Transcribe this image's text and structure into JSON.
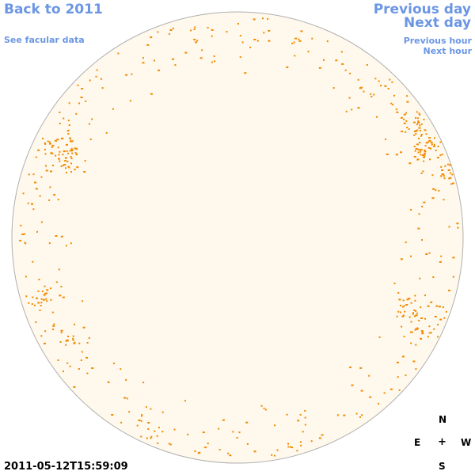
{
  "nav": {
    "back_label": "Back to 2011",
    "facular_label": "See facular data",
    "prev_day_label": "Previous day",
    "next_day_label": "Next day",
    "prev_hour_label": "Previous hour",
    "next_hour_label": "Next hour"
  },
  "compass": {
    "north": "N",
    "east": "E",
    "center": "+",
    "west": "W",
    "south": "S"
  },
  "timestamp": "2011-05-12T15:59:09",
  "colors": {
    "link": "#6b96e4",
    "disk_fill": "#fff8ec",
    "disk_outline": "#b0b0b0",
    "facula": "#f08a00"
  }
}
